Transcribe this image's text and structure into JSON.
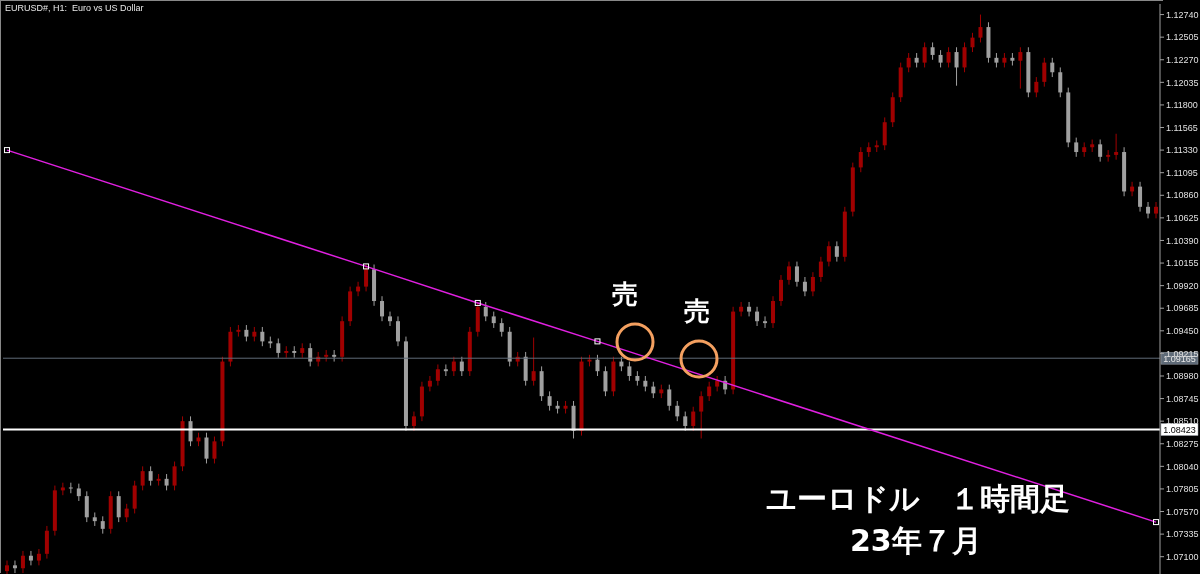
{
  "chart_data": {
    "type": "candlestick",
    "title": "EURUSD#, H1:  Euro vs US Dollar",
    "categories": [
      null,
      null,
      null,
      null,
      null,
      null,
      null,
      null,
      null,
      null,
      null,
      null,
      null,
      null,
      null,
      null,
      null,
      null,
      null,
      null,
      null,
      null,
      null,
      null,
      null,
      null,
      null,
      null,
      null,
      null,
      null,
      null,
      null,
      null,
      null,
      null,
      null,
      null,
      null,
      null,
      null,
      null,
      null,
      null,
      null,
      null,
      null,
      null,
      null,
      null,
      null,
      null,
      null,
      null,
      null,
      null,
      null,
      null,
      null,
      null,
      null,
      null,
      null,
      null,
      null,
      null,
      null,
      null,
      null,
      null,
      null,
      null,
      null,
      null,
      null,
      null,
      null,
      null,
      null,
      null,
      null,
      null,
      null,
      null,
      null,
      null,
      null,
      null,
      null,
      null,
      null,
      null,
      null,
      null,
      null,
      null,
      null,
      null,
      null,
      null,
      null,
      null,
      null,
      null,
      null,
      null,
      null,
      null,
      null,
      null,
      null,
      null,
      null,
      null,
      null,
      null,
      null,
      null,
      null,
      null,
      null,
      null,
      null,
      null,
      null,
      null,
      null,
      null,
      null,
      null,
      null,
      null,
      null,
      null,
      null,
      null,
      null,
      null,
      null,
      null,
      null,
      null,
      null,
      null,
      null
    ],
    "ohlc": [
      [
        1.0695,
        1.0706,
        1.069,
        1.0701
      ],
      [
        1.0701,
        1.0706,
        1.0693,
        1.0698
      ],
      [
        1.0698,
        1.0716,
        1.0693,
        1.0711
      ],
      [
        1.0711,
        1.0716,
        1.0701,
        1.0706
      ],
      [
        1.0706,
        1.0718,
        1.0701,
        1.0713
      ],
      [
        1.0713,
        1.0742,
        1.0708,
        1.0737
      ],
      [
        1.0737,
        1.0784,
        1.0732,
        1.0779
      ],
      [
        1.0779,
        1.0787,
        1.0774,
        1.0782
      ],
      [
        1.0782,
        1.0787,
        1.0776,
        1.0781
      ],
      [
        1.0781,
        1.0786,
        1.0768,
        1.0773
      ],
      [
        1.0773,
        1.0778,
        1.0746,
        1.0751
      ],
      [
        1.0751,
        1.0756,
        1.0742,
        1.0747
      ],
      [
        1.0747,
        1.0752,
        1.0734,
        1.0739
      ],
      [
        1.0739,
        1.0778,
        1.0734,
        1.0773
      ],
      [
        1.0773,
        1.0778,
        1.0746,
        1.0751
      ],
      [
        1.0751,
        1.0765,
        1.0746,
        1.076
      ],
      [
        1.076,
        1.0789,
        1.0755,
        1.0784
      ],
      [
        1.0784,
        1.0804,
        1.0779,
        1.0799
      ],
      [
        1.0799,
        1.0804,
        1.0784,
        1.0789
      ],
      [
        1.0789,
        1.0796,
        1.0784,
        1.0791
      ],
      [
        1.0791,
        1.0796,
        1.0779,
        1.0784
      ],
      [
        1.0784,
        1.0809,
        1.0779,
        1.0804
      ],
      [
        1.0804,
        1.0856,
        1.0799,
        1.0851
      ],
      [
        1.0851,
        1.0856,
        1.0825,
        1.083
      ],
      [
        1.083,
        1.0839,
        1.0825,
        1.0834
      ],
      [
        1.0834,
        1.0839,
        1.0807,
        1.0812
      ],
      [
        1.0812,
        1.0835,
        1.0807,
        1.083
      ],
      [
        1.083,
        1.0918,
        1.0825,
        1.0913
      ],
      [
        1.0913,
        1.0949,
        1.0908,
        1.0944
      ],
      [
        1.0944,
        1.0951,
        1.0939,
        1.0946
      ],
      [
        1.0946,
        1.0951,
        1.0934,
        1.0939
      ],
      [
        1.0939,
        1.0949,
        1.0934,
        1.0944
      ],
      [
        1.0944,
        1.0949,
        1.0929,
        1.0934
      ],
      [
        1.0934,
        1.0939,
        1.0927,
        1.0932
      ],
      [
        1.0932,
        1.0937,
        1.0917,
        1.0922
      ],
      [
        1.0922,
        1.0929,
        1.0917,
        1.0924
      ],
      [
        1.0924,
        1.0929,
        1.0917,
        1.0922
      ],
      [
        1.0922,
        1.0932,
        1.0917,
        1.0927
      ],
      [
        1.0927,
        1.0932,
        1.0908,
        1.0913
      ],
      [
        1.0913,
        1.0923,
        1.0908,
        1.0918
      ],
      [
        1.0918,
        1.0925,
        1.0913,
        1.092
      ],
      [
        1.092,
        1.0925,
        1.0913,
        1.0918
      ],
      [
        1.0918,
        1.096,
        1.0913,
        1.0955
      ],
      [
        1.0955,
        1.0991,
        1.095,
        1.0986
      ],
      [
        1.0986,
        1.0996,
        1.0981,
        1.0991
      ],
      [
        1.0991,
        1.1014,
        1.0986,
        1.1009
      ],
      [
        1.1009,
        1.1014,
        1.0971,
        1.0976
      ],
      [
        1.0976,
        1.0981,
        1.0955,
        1.096
      ],
      [
        1.096,
        1.0965,
        1.095,
        1.0955
      ],
      [
        1.0955,
        1.096,
        1.0929,
        1.0934
      ],
      [
        1.0934,
        1.0939,
        1.0841,
        1.0846
      ],
      [
        1.0846,
        1.0861,
        1.0841,
        1.0856
      ],
      [
        1.0856,
        1.0892,
        1.0851,
        1.0887
      ],
      [
        1.0887,
        1.0898,
        1.0882,
        1.0893
      ],
      [
        1.0893,
        1.091,
        1.0888,
        1.0905
      ],
      [
        1.0905,
        1.091,
        1.0898,
        1.0903
      ],
      [
        1.0903,
        1.0918,
        1.0898,
        1.0913
      ],
      [
        1.0913,
        1.0918,
        1.0898,
        1.0903
      ],
      [
        1.0903,
        1.0949,
        1.0898,
        1.0944
      ],
      [
        1.0944,
        1.0975,
        1.0939,
        1.097
      ],
      [
        1.097,
        1.0975,
        1.0955,
        1.096
      ],
      [
        1.096,
        1.0965,
        1.0948,
        1.0953
      ],
      [
        1.0953,
        1.0958,
        1.0939,
        1.0944
      ],
      [
        1.0944,
        1.0949,
        1.0908,
        1.0913
      ],
      [
        1.0913,
        1.0923,
        1.0908,
        1.0918
      ],
      [
        1.0918,
        1.0923,
        1.0888,
        1.0893
      ],
      [
        1.0893,
        1.0938,
        1.0888,
        1.0903
      ],
      [
        1.0903,
        1.0908,
        1.0872,
        1.0877
      ],
      [
        1.0877,
        1.0882,
        1.0862,
        1.0867
      ],
      [
        1.0867,
        1.0872,
        1.0859,
        1.0864
      ],
      [
        1.0864,
        1.0872,
        1.0859,
        1.0867
      ],
      [
        1.0867,
        1.0872,
        1.0833,
        1.0841
      ],
      [
        1.0841,
        1.0918,
        1.0836,
        1.0913
      ],
      [
        1.0913,
        1.092,
        1.0908,
        1.0915
      ],
      [
        1.0915,
        1.092,
        1.0898,
        1.0903
      ],
      [
        1.0903,
        1.0908,
        1.0877,
        1.0882
      ],
      [
        1.0882,
        1.0918,
        1.0877,
        1.0913
      ],
      [
        1.0913,
        1.0918,
        1.0903,
        1.0908
      ],
      [
        1.0908,
        1.0913,
        1.0893,
        1.0898
      ],
      [
        1.0898,
        1.0903,
        1.0888,
        1.0893
      ],
      [
        1.0893,
        1.0898,
        1.0882,
        1.0887
      ],
      [
        1.0887,
        1.0892,
        1.0875,
        1.088
      ],
      [
        1.088,
        1.0889,
        1.0875,
        1.0884
      ],
      [
        1.0884,
        1.0889,
        1.0862,
        1.0867
      ],
      [
        1.0867,
        1.0872,
        1.0851,
        1.0856
      ],
      [
        1.0856,
        1.0861,
        1.0841,
        1.0846
      ],
      [
        1.0846,
        1.0866,
        1.0841,
        1.0861
      ],
      [
        1.0861,
        1.0882,
        1.0833,
        1.0877
      ],
      [
        1.0877,
        1.0892,
        1.0872,
        1.0887
      ],
      [
        1.0887,
        1.0898,
        1.0882,
        1.0893
      ],
      [
        1.0893,
        1.0898,
        1.0879,
        1.0884
      ],
      [
        1.0884,
        1.097,
        1.0879,
        1.0965
      ],
      [
        1.0965,
        1.0975,
        1.096,
        1.097
      ],
      [
        1.097,
        1.0975,
        1.096,
        1.0965
      ],
      [
        1.0965,
        1.097,
        1.095,
        1.0955
      ],
      [
        1.0955,
        1.096,
        1.0948,
        1.0953
      ],
      [
        1.0953,
        1.0981,
        1.0948,
        1.0976
      ],
      [
        1.0976,
        1.1003,
        1.0971,
        1.0998
      ],
      [
        1.0998,
        1.1017,
        1.0993,
        1.1012
      ],
      [
        1.1012,
        1.1017,
        1.0991,
        1.0996
      ],
      [
        1.0996,
        1.1001,
        1.0981,
        1.0986
      ],
      [
        1.0986,
        1.1006,
        1.0981,
        1.1001
      ],
      [
        1.1001,
        1.1022,
        1.0996,
        1.1017
      ],
      [
        1.1017,
        1.1038,
        1.1012,
        1.1033
      ],
      [
        1.1033,
        1.1038,
        1.1017,
        1.1022
      ],
      [
        1.1022,
        1.1074,
        1.1017,
        1.1069
      ],
      [
        1.1069,
        1.112,
        1.1064,
        1.1115
      ],
      [
        1.1115,
        1.1136,
        1.111,
        1.1131
      ],
      [
        1.1131,
        1.1141,
        1.1126,
        1.1136
      ],
      [
        1.1136,
        1.1143,
        1.1131,
        1.1138
      ],
      [
        1.1138,
        1.1167,
        1.1133,
        1.1162
      ],
      [
        1.1162,
        1.1193,
        1.1157,
        1.1188
      ],
      [
        1.1188,
        1.1224,
        1.1183,
        1.1219
      ],
      [
        1.1219,
        1.1234,
        1.1214,
        1.1229
      ],
      [
        1.1229,
        1.1234,
        1.1219,
        1.1224
      ],
      [
        1.1224,
        1.1245,
        1.1219,
        1.124
      ],
      [
        1.124,
        1.1245,
        1.1227,
        1.1232
      ],
      [
        1.1232,
        1.1237,
        1.1219,
        1.1224
      ],
      [
        1.1224,
        1.124,
        1.1219,
        1.1235
      ],
      [
        1.1235,
        1.124,
        1.12,
        1.1219
      ],
      [
        1.1219,
        1.1245,
        1.1214,
        1.124
      ],
      [
        1.124,
        1.1255,
        1.1235,
        1.125
      ],
      [
        1.125,
        1.1274,
        1.1245,
        1.1261
      ],
      [
        1.1261,
        1.1266,
        1.1224,
        1.1229
      ],
      [
        1.1229,
        1.1234,
        1.1219,
        1.1224
      ],
      [
        1.1224,
        1.1234,
        1.1219,
        1.1229
      ],
      [
        1.1229,
        1.1234,
        1.1221,
        1.1226
      ],
      [
        1.1226,
        1.124,
        1.1197,
        1.1235
      ],
      [
        1.1235,
        1.124,
        1.1188,
        1.1193
      ],
      [
        1.1193,
        1.1209,
        1.1188,
        1.1204
      ],
      [
        1.1204,
        1.1229,
        1.1199,
        1.1224
      ],
      [
        1.1224,
        1.1229,
        1.1209,
        1.1214
      ],
      [
        1.1214,
        1.1219,
        1.1188,
        1.1193
      ],
      [
        1.1193,
        1.1198,
        1.1136,
        1.1141
      ],
      [
        1.1141,
        1.1146,
        1.1126,
        1.1131
      ],
      [
        1.1131,
        1.1141,
        1.1126,
        1.1136
      ],
      [
        1.1136,
        1.1144,
        1.1131,
        1.1139
      ],
      [
        1.1139,
        1.1144,
        1.1121,
        1.1126
      ],
      [
        1.1126,
        1.1133,
        1.1121,
        1.1128
      ],
      [
        1.1128,
        1.115,
        1.1123,
        1.1131
      ],
      [
        1.1131,
        1.1136,
        1.1085,
        1.109
      ],
      [
        1.109,
        1.11,
        1.1085,
        1.1095
      ],
      [
        1.1095,
        1.11,
        1.1069,
        1.1074
      ],
      [
        1.1074,
        1.1079,
        1.1062,
        1.1067
      ],
      [
        1.1067,
        1.1079,
        1.1062,
        1.1074
      ]
    ],
    "colors": [
      "#a00000",
      "#a0a0a0",
      "#a00000",
      "#a0a0a0",
      "#a00000",
      "#a00000",
      "#a00000",
      "#a00000",
      "#a0a0a0",
      "#a0a0a0",
      "#a0a0a0",
      "#a0a0a0",
      "#a0a0a0",
      "#a00000",
      "#a0a0a0",
      "#a00000",
      "#a00000",
      "#a00000",
      "#a0a0a0",
      "#a00000",
      "#a0a0a0",
      "#a00000",
      "#a00000",
      "#a0a0a0",
      "#a00000",
      "#a0a0a0",
      "#a00000",
      "#a00000",
      "#a00000",
      "#a00000",
      "#a0a0a0",
      "#a00000",
      "#a0a0a0",
      "#a0a0a0",
      "#a0a0a0",
      "#a00000",
      "#a0a0a0",
      "#a00000",
      "#a0a0a0",
      "#a00000",
      "#a00000",
      "#a0a0a0",
      "#a00000",
      "#a00000",
      "#a00000",
      "#a00000",
      "#a0a0a0",
      "#a0a0a0",
      "#a0a0a0",
      "#a0a0a0",
      "#a0a0a0",
      "#a00000",
      "#a00000",
      "#a00000",
      "#a00000",
      "#a0a0a0",
      "#a00000",
      "#a0a0a0",
      "#a00000",
      "#a00000",
      "#a0a0a0",
      "#a0a0a0",
      "#a0a0a0",
      "#a0a0a0",
      "#a00000",
      "#a0a0a0",
      "#a00000",
      "#a0a0a0",
      "#a0a0a0",
      "#a0a0a0",
      "#a00000",
      "#a0a0a0",
      "#a00000",
      "#a00000",
      "#a0a0a0",
      "#a0a0a0",
      "#a00000",
      "#a0a0a0",
      "#a0a0a0",
      "#a0a0a0",
      "#a0a0a0",
      "#a0a0a0",
      "#a00000",
      "#a0a0a0",
      "#a0a0a0",
      "#a0a0a0",
      "#a00000",
      "#a00000",
      "#a00000",
      "#a00000",
      "#a0a0a0",
      "#a00000",
      "#a00000",
      "#a0a0a0",
      "#a0a0a0",
      "#a0a0a0",
      "#a00000",
      "#a00000",
      "#a00000",
      "#a0a0a0",
      "#a0a0a0",
      "#a00000",
      "#a00000",
      "#a00000",
      "#a0a0a0",
      "#a00000",
      "#a00000",
      "#a00000",
      "#a00000",
      "#a00000",
      "#a00000",
      "#a00000",
      "#a00000",
      "#a00000",
      "#a0a0a0",
      "#a00000",
      "#a0a0a0",
      "#a0a0a0",
      "#a00000",
      "#a0a0a0",
      "#a00000",
      "#a00000",
      "#a00000",
      "#a0a0a0",
      "#a0a0a0",
      "#a00000",
      "#a0a0a0",
      "#a00000",
      "#a0a0a0",
      "#a00000",
      "#a00000",
      "#a0a0a0",
      "#a0a0a0",
      "#a0a0a0",
      "#a0a0a0",
      "#a00000",
      "#a00000",
      "#a0a0a0",
      "#a00000",
      "#a00000",
      "#a0a0a0",
      "#a00000",
      "#a0a0a0",
      "#a0a0a0",
      "#a00000"
    ],
    "series": [
      {
        "type": "line",
        "color": "#e020e0",
        "values": [
          1.1133,
          null,
          null,
          null,
          null,
          null,
          null,
          null,
          null,
          null,
          null,
          null,
          null,
          null,
          null,
          null,
          null,
          null,
          null,
          null,
          null,
          null,
          null,
          null,
          null,
          null,
          null,
          null,
          null,
          null,
          null,
          null,
          null,
          null,
          null,
          null,
          null,
          null,
          null,
          null,
          null,
          null,
          null,
          null,
          null,
          1.1012,
          null,
          null,
          null,
          null,
          null,
          null,
          null,
          null,
          null,
          null,
          null,
          null,
          null,
          1.0974,
          null,
          null,
          null,
          null,
          null,
          null,
          null,
          null,
          null,
          null,
          null,
          null,
          null,
          null,
          1.0934,
          null,
          null,
          null,
          null,
          null,
          null,
          null,
          null,
          null,
          null,
          null,
          null,
          null,
          null,
          null,
          null,
          null,
          null,
          null,
          null,
          null,
          null,
          null,
          null,
          null,
          null,
          null,
          null,
          null,
          null,
          null,
          null,
          null,
          null,
          null,
          null,
          null,
          null,
          null,
          null,
          null,
          null,
          null,
          null,
          null,
          null,
          null,
          null,
          null,
          null,
          null,
          null,
          null,
          null,
          null,
          null,
          null,
          null,
          null,
          null,
          null,
          null,
          null,
          null,
          null,
          null,
          null,
          null,
          null,
          1.0746
        ]
      }
    ],
    "marker": "square",
    "ylim": [
      1.0692,
      1.1285
    ],
    "yticks": [
      {
        "value": 1.071,
        "label": "1.07100"
      },
      1.07335,
      {
        "value": 1.0757,
        "label": "1.07570"
      },
      1.07805,
      {
        "value": 1.0804,
        "label": "1.08040"
      },
      1.08275,
      {
        "value": 1.0851,
        "label": "1.08510"
      },
      1.08745,
      {
        "value": 1.0898,
        "label": "1.08980"
      },
      1.09215,
      {
        "value": 1.0945,
        "label": "1.09450"
      },
      1.09685,
      {
        "value": 1.0992,
        "label": "1.09920"
      },
      1.10155,
      {
        "value": 1.1039,
        "label": "1.10390"
      },
      1.10625,
      {
        "value": 1.1086,
        "label": "1.10860"
      },
      1.11095,
      {
        "value": 1.1133,
        "label": "1.11330"
      },
      1.11565,
      {
        "value": 1.118,
        "label": "1.11800"
      },
      1.12035,
      {
        "value": 1.1227,
        "label": "1.12270"
      },
      1.12505,
      {
        "value": 1.1274,
        "label": "1.12740"
      }
    ],
    "ref_lines": [
      {
        "axis": "y",
        "value": 1.09165,
        "label": "1.09165",
        "color": "#5f6b78"
      },
      {
        "axis": "y",
        "value": 1.08423,
        "label": "1.08423",
        "color": "#ffffff"
      }
    ],
    "annotations": [
      "売",
      "売",
      "ユーロドル　１時間足",
      "23年７月"
    ],
    "tick_labels": "y",
    "grid": false,
    "legend": false
  }
}
